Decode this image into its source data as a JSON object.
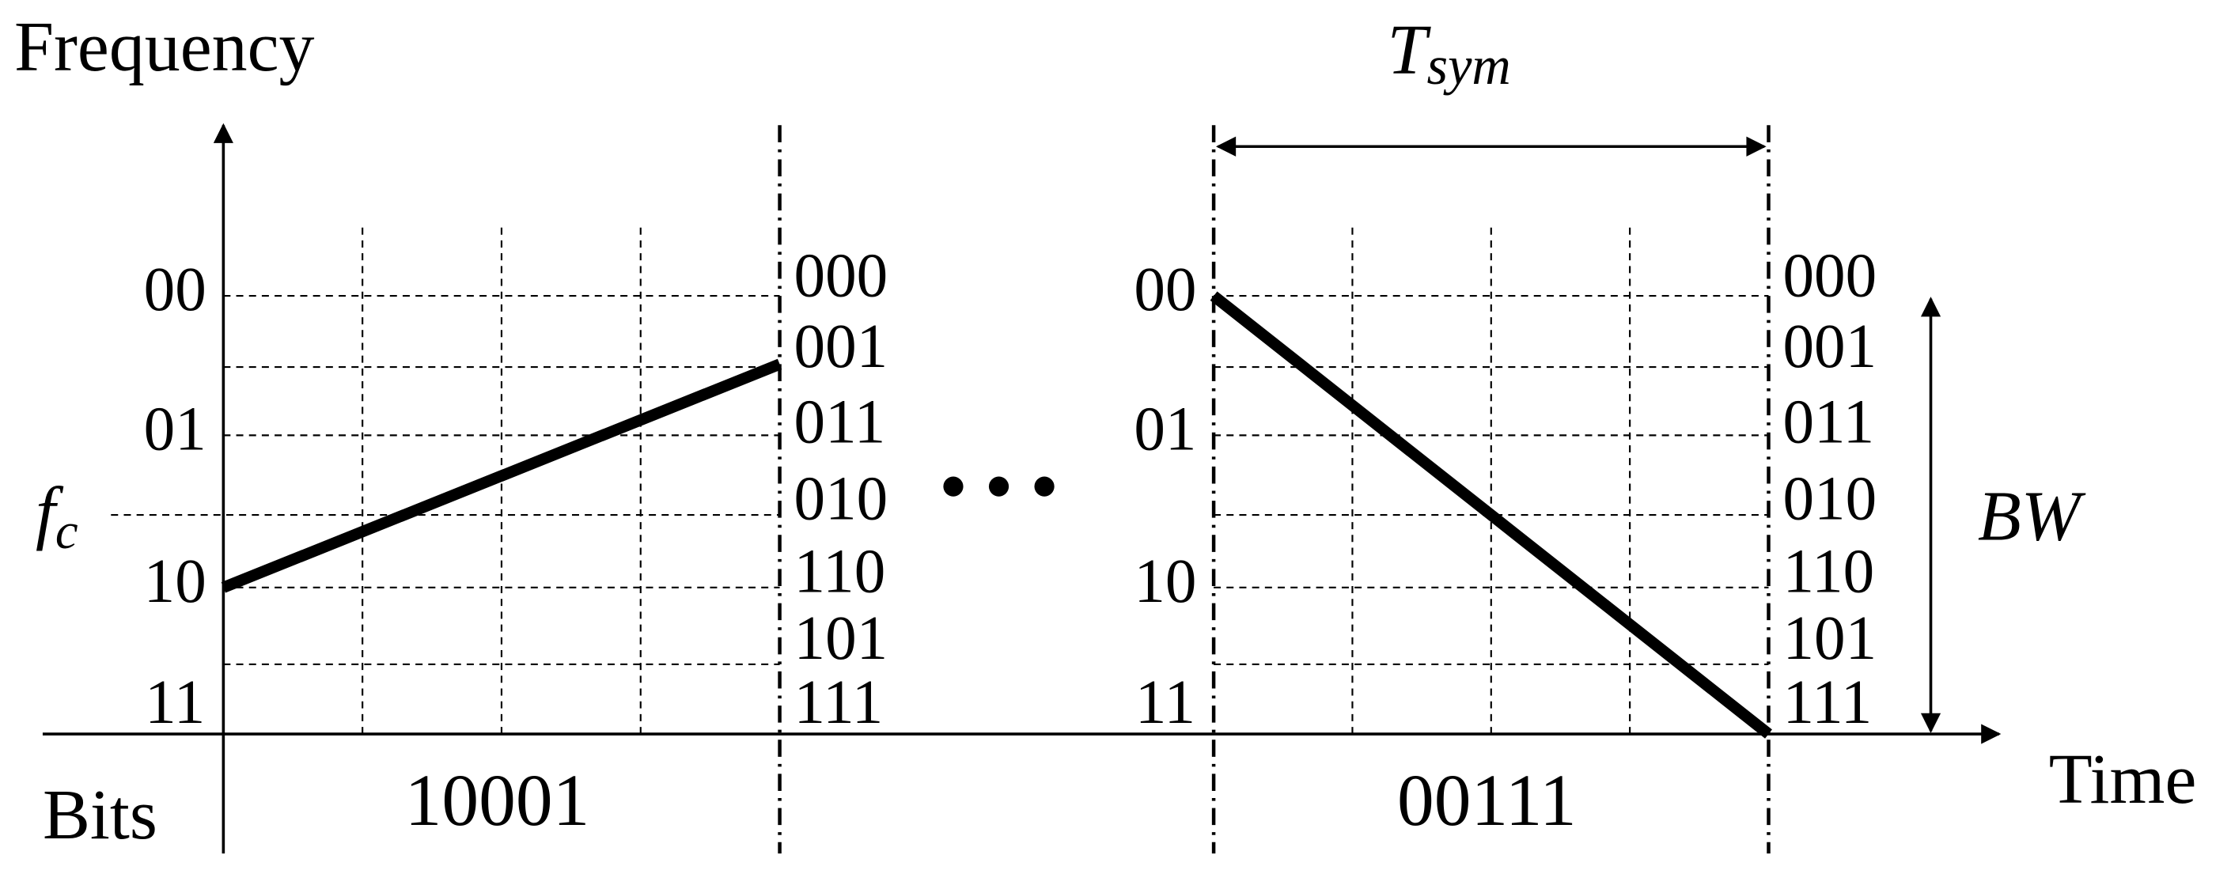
{
  "axes": {
    "y_label": "Frequency",
    "x_label": "Time",
    "bits_label": "Bits"
  },
  "symbols": [
    {
      "bits": "10001",
      "freq_labels": [
        "00",
        "01",
        "10",
        "11"
      ],
      "bin_labels": [
        "000",
        "001",
        "011",
        "010",
        "110",
        "101",
        "111"
      ]
    },
    {
      "bits": "00111",
      "freq_labels": [
        "00",
        "01",
        "10",
        "11"
      ],
      "bin_labels": [
        "000",
        "001",
        "011",
        "010",
        "110",
        "101",
        "111"
      ]
    }
  ],
  "fc": {
    "main": "f",
    "sub": "c"
  },
  "tsym": {
    "main": "T",
    "sub": "sym"
  },
  "bw": "BW"
}
